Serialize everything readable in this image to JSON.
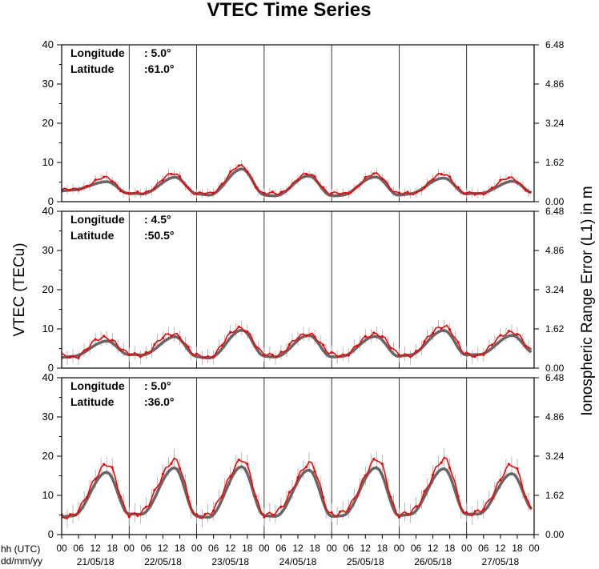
{
  "chart_data": {
    "type": "line",
    "title": "VTEC Time Series",
    "ylabel": "VTEC (TECu)",
    "ylabel_right": "Ionospheric Range Error (L1) in m",
    "xlabel_lines": [
      "hh (UTC)",
      "dd/mm/yy"
    ],
    "ylim": [
      0,
      40
    ],
    "y_ticks": [
      0,
      10,
      20,
      30,
      40
    ],
    "y2_ticks": [
      "0.00",
      "1.62",
      "3.24",
      "4.86",
      "6.48"
    ],
    "x_hour_ticks": [
      "00",
      "06",
      "12",
      "18"
    ],
    "x_end_tick": "00",
    "days": [
      "21/05/18",
      "22/05/18",
      "23/05/18",
      "24/05/18",
      "25/05/18",
      "26/05/18",
      "27/05/18"
    ],
    "grid": "vertical lines at day boundaries",
    "series_colors": {
      "measured": "#ff0000",
      "reference": "#666666",
      "error_bars": "#aaaaaa"
    },
    "panels": [
      {
        "lon_label": "Longitude",
        "lon_value": ": 5.0°",
        "lat_label": "Latitude",
        "lat_value": ":61.0°",
        "daily_min": [
          3,
          2,
          2,
          2,
          2,
          2,
          2,
          2
        ],
        "daily_max": [
          6,
          7,
          9,
          7,
          7,
          7,
          6
        ]
      },
      {
        "lon_label": "Longitude",
        "lon_value": ": 4.5°",
        "lat_label": "Latitude",
        "lat_value": ":50.5°",
        "daily_min": [
          3,
          3.5,
          3,
          3.5,
          3.5,
          3.5,
          3.5,
          4
        ],
        "daily_max": [
          8,
          9,
          10.5,
          9,
          9,
          11,
          9.5
        ]
      },
      {
        "lon_label": "Longitude",
        "lon_value": ": 5.0°",
        "lat_label": "Latitude",
        "lat_value": ":36.0°",
        "daily_min": [
          5,
          5.5,
          5,
          5.5,
          5.5,
          5.5,
          5.5,
          6.5
        ],
        "daily_max": [
          18,
          19,
          19,
          18,
          19,
          19,
          17.5
        ]
      }
    ]
  }
}
